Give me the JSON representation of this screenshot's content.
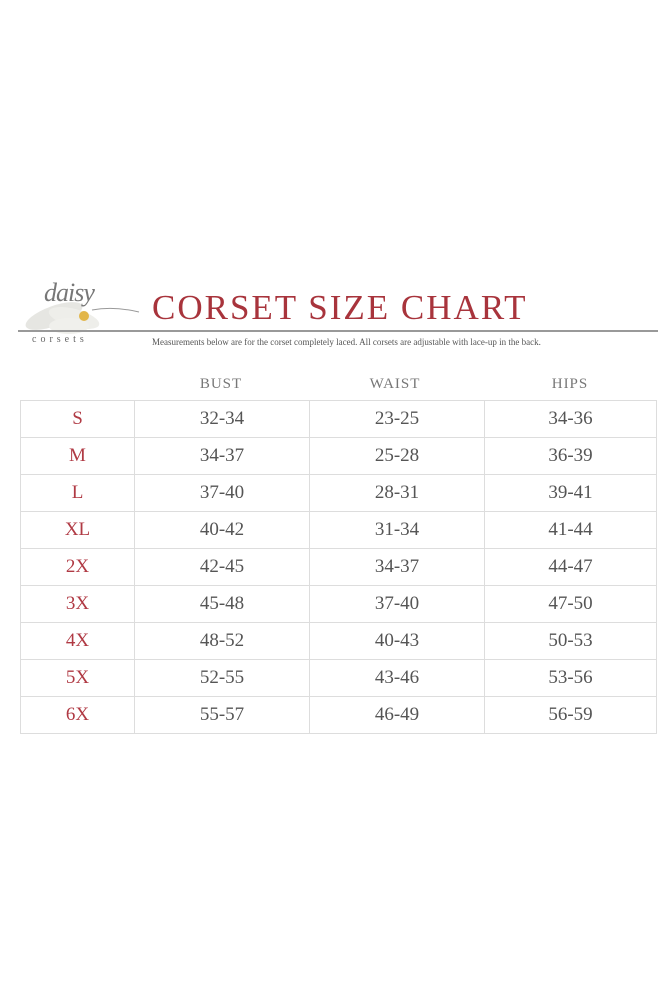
{
  "logo": {
    "script": "daisy",
    "word": "corsets"
  },
  "title": "CORSET SIZE CHART",
  "subtitle": "Measurements below are for the corset completely laced.  All corsets are adjustable with lace-up in the back.",
  "colors": {
    "title": "#a8343c",
    "size_label": "#b03a44",
    "grid": "#dddddd"
  },
  "columns": [
    "BUST",
    "WAIST",
    "HIPS"
  ],
  "rows": [
    {
      "size": "S",
      "bust": "32-34",
      "waist": "23-25",
      "hips": "34-36"
    },
    {
      "size": "M",
      "bust": "34-37",
      "waist": "25-28",
      "hips": "36-39"
    },
    {
      "size": "L",
      "bust": "37-40",
      "waist": "28-31",
      "hips": "39-41"
    },
    {
      "size": "XL",
      "bust": "40-42",
      "waist": "31-34",
      "hips": "41-44"
    },
    {
      "size": "2X",
      "bust": "42-45",
      "waist": "34-37",
      "hips": "44-47"
    },
    {
      "size": "3X",
      "bust": "45-48",
      "waist": "37-40",
      "hips": "47-50"
    },
    {
      "size": "4X",
      "bust": "48-52",
      "waist": "40-43",
      "hips": "50-53"
    },
    {
      "size": "5X",
      "bust": "52-55",
      "waist": "43-46",
      "hips": "53-56"
    },
    {
      "size": "6X",
      "bust": "55-57",
      "waist": "46-49",
      "hips": "56-59"
    }
  ]
}
